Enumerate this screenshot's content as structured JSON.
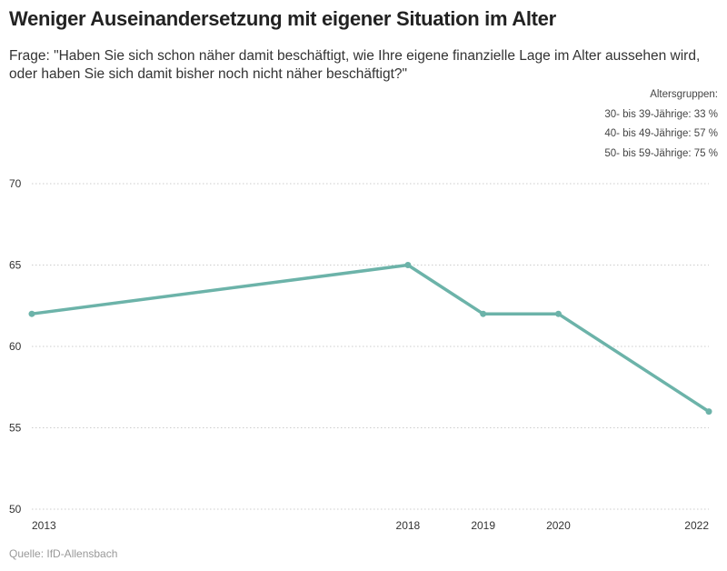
{
  "chart_data": {
    "type": "line",
    "title": "Weniger Auseinandersetzung mit eigener Situation im Alter",
    "subtitle": "Frage: \"Haben Sie sich schon näher damit beschäftigt, wie Ihre eigene finanzielle Lage im Alter aussehen wird, oder haben Sie sich damit bisher noch nicht näher beschäftigt?\"",
    "notes": [
      "Altersgruppen:",
      "30- bis 39-Jährige: 33 %",
      "40- bis 49-Jährige: 57 %",
      "50- bis 59-Jährige: 75 %"
    ],
    "source": "Quelle: IfD-Allensbach",
    "x": [
      2013,
      2018,
      2019,
      2020,
      2022
    ],
    "values": [
      62,
      65,
      62,
      62,
      56
    ],
    "xlim": [
      2013,
      2022
    ],
    "ylim": [
      50,
      70
    ],
    "yticks": [
      50,
      55,
      60,
      65,
      70
    ],
    "grid": true,
    "color": "#6cb3a9"
  }
}
